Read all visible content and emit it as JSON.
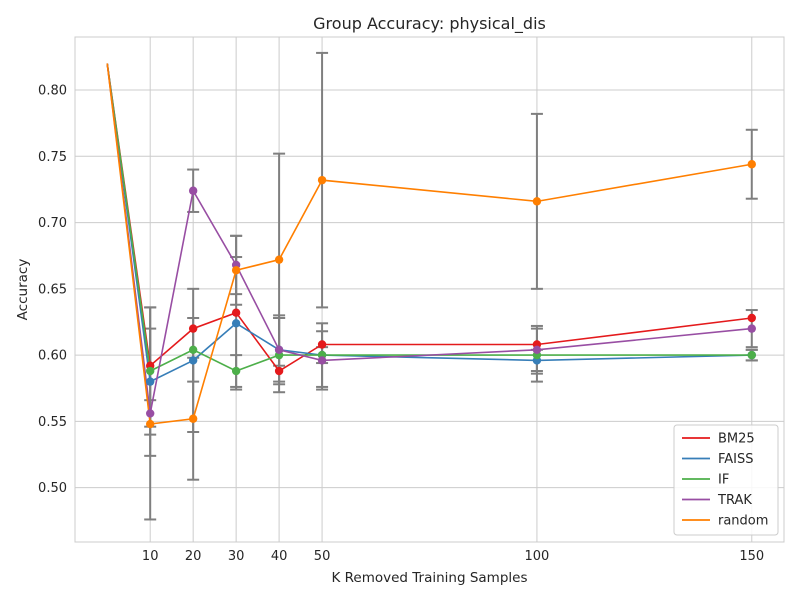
{
  "chart_data": {
    "type": "line",
    "title": "Group Accuracy: physical_dis",
    "xlabel": "K Removed Training Samples",
    "ylabel": "Accuracy",
    "xlim": [
      -7.5,
      157.5
    ],
    "ylim": [
      0.459,
      0.84
    ],
    "x_ticks": [
      10,
      20,
      30,
      40,
      50,
      100,
      150
    ],
    "y_ticks": [
      0.5,
      0.55,
      0.6,
      0.65,
      0.7,
      0.75,
      0.8
    ],
    "grid": true,
    "legend_position": "lower-right",
    "errorbar_color": "#7f7f7f",
    "series": [
      {
        "name": "BM25",
        "color": "#e41a1c",
        "x": [
          0,
          10,
          20,
          30,
          40,
          50,
          100,
          150
        ],
        "y": [
          0.82,
          0.592,
          0.62,
          0.632,
          0.588,
          0.608,
          0.608,
          0.628
        ],
        "err": [
          null,
          null,
          null,
          null,
          null,
          null,
          null,
          null
        ]
      },
      {
        "name": "FAISS",
        "color": "#377eb8",
        "x": [
          0,
          10,
          20,
          30,
          40,
          50,
          100,
          150
        ],
        "y": [
          0.82,
          0.58,
          0.596,
          0.624,
          0.604,
          0.6,
          0.596,
          0.6
        ],
        "err": [
          null,
          0.056,
          0.054,
          0.05,
          0.024,
          0.024,
          0.008,
          0.004
        ]
      },
      {
        "name": "IF",
        "color": "#4daf4a",
        "x": [
          0,
          10,
          20,
          30,
          40,
          50,
          100,
          150
        ],
        "y": [
          0.82,
          0.588,
          0.604,
          0.588,
          0.6,
          0.6,
          0.6,
          0.6
        ],
        "err": [
          null,
          0.048,
          0.024,
          0.012,
          0.028,
          0.006,
          0.02,
          0.004
        ]
      },
      {
        "name": "TRAK",
        "color": "#984ea3",
        "x": [
          0,
          10,
          20,
          30,
          40,
          50,
          100,
          150
        ],
        "y": [
          0.82,
          0.556,
          0.724,
          0.668,
          0.604,
          0.596,
          0.604,
          0.62
        ],
        "err": [
          null,
          0.01,
          0.016,
          0.022,
          0.026,
          0.022,
          0.018,
          0.014
        ]
      },
      {
        "name": "random",
        "color": "#ff7f00",
        "x": [
          0,
          10,
          20,
          30,
          40,
          50,
          100,
          150
        ],
        "y": [
          0.82,
          0.548,
          0.552,
          0.664,
          0.672,
          0.732,
          0.716,
          0.744
        ],
        "err": [
          null,
          0.072,
          0.046,
          0.026,
          0.08,
          0.096,
          0.066,
          0.026
        ]
      }
    ]
  }
}
